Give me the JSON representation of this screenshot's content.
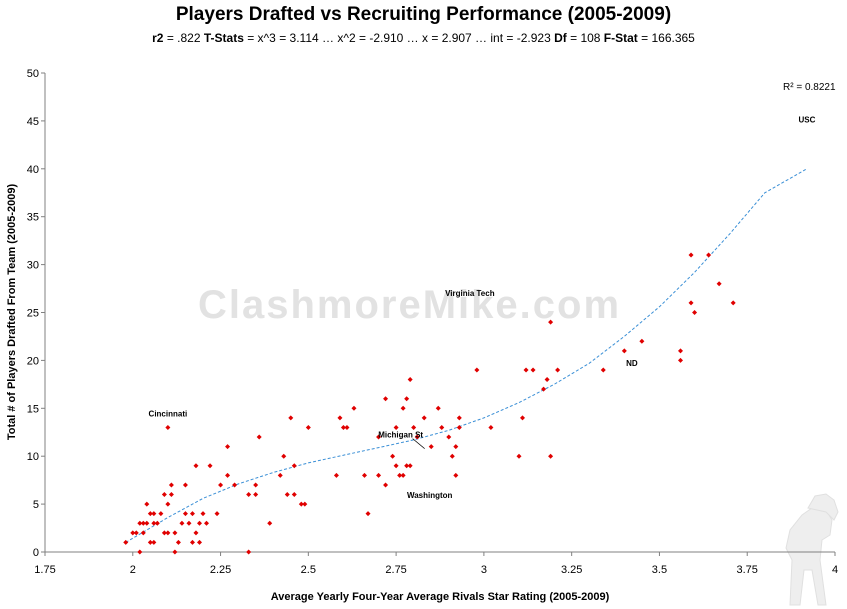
{
  "chart_data": {
    "type": "scatter",
    "title": "Players Drafted vs Recruiting Performance (2005-2009)",
    "subtitle": [
      {
        "label": "r2",
        "value": " = .822   "
      },
      {
        "label": "T-Stats",
        "value": " = x^3 = 3.114 … x^2 = -2.910 … x = 2.907 … int = -2.923   "
      },
      {
        "label": "Df",
        "value": " = 108   "
      },
      {
        "label": "F-Stat",
        "value": " = 166.365"
      }
    ],
    "xlabel": "Average Yearly Four-Year Average Rivals Star Rating (2005-2009)",
    "ylabel": "Total # of Players Drafted From Team (2005-2009)",
    "xlim": [
      1.75,
      4
    ],
    "ylim": [
      0,
      50
    ],
    "x_ticks": [
      "1.75",
      "2",
      "2.25",
      "2.5",
      "2.75",
      "3",
      "3.25",
      "3.5",
      "3.75",
      "4"
    ],
    "y_ticks": [
      "0",
      "5",
      "10",
      "15",
      "20",
      "25",
      "30",
      "35",
      "40",
      "45",
      "50"
    ],
    "grid": false,
    "marker_color": "#e00000",
    "trendline_color": "#3a8fd6",
    "r_squared_label": "R² = 0.8221",
    "watermark": "ClashmoreMike.com",
    "trendline": {
      "type": "polynomial-3",
      "points": [
        [
          1.98,
          1
        ],
        [
          2.1,
          3.6
        ],
        [
          2.2,
          5.6
        ],
        [
          2.3,
          7.1
        ],
        [
          2.4,
          8.3
        ],
        [
          2.5,
          9.3
        ],
        [
          2.6,
          10.1
        ],
        [
          2.7,
          10.9
        ],
        [
          2.8,
          11.7
        ],
        [
          2.9,
          12.7
        ],
        [
          3.0,
          14.0
        ],
        [
          3.1,
          15.6
        ],
        [
          3.2,
          17.5
        ],
        [
          3.3,
          19.7
        ],
        [
          3.4,
          22.5
        ],
        [
          3.5,
          25.6
        ],
        [
          3.6,
          29.2
        ],
        [
          3.7,
          33.2
        ],
        [
          3.8,
          37.5
        ],
        [
          3.92,
          40.0
        ]
      ]
    },
    "annotations": [
      {
        "text": "USC",
        "x": 3.92,
        "y": 44
      },
      {
        "text": "Virginia Tech",
        "x": 2.96,
        "y": 26
      },
      {
        "text": "ND",
        "x": 3.41,
        "y": 19
      },
      {
        "text": "Cincinnati",
        "x": 2.1,
        "y": 13
      },
      {
        "text": "Michigan St",
        "x": 2.78,
        "y": 11
      },
      {
        "text": "Washington",
        "x": 2.84,
        "y": 5
      }
    ],
    "points": [
      [
        1.98,
        1
      ],
      [
        2.0,
        2
      ],
      [
        2.01,
        2
      ],
      [
        2.02,
        3
      ],
      [
        2.02,
        0
      ],
      [
        2.03,
        3
      ],
      [
        2.03,
        2
      ],
      [
        2.04,
        5
      ],
      [
        2.04,
        3
      ],
      [
        2.05,
        1
      ],
      [
        2.05,
        4
      ],
      [
        2.06,
        3
      ],
      [
        2.06,
        4
      ],
      [
        2.06,
        1
      ],
      [
        2.07,
        3
      ],
      [
        2.08,
        4
      ],
      [
        2.09,
        2
      ],
      [
        2.09,
        6
      ],
      [
        2.1,
        13
      ],
      [
        2.1,
        5
      ],
      [
        2.1,
        2
      ],
      [
        2.11,
        7
      ],
      [
        2.11,
        6
      ],
      [
        2.12,
        2
      ],
      [
        2.12,
        0
      ],
      [
        2.13,
        1
      ],
      [
        2.14,
        3
      ],
      [
        2.15,
        4
      ],
      [
        2.15,
        7
      ],
      [
        2.16,
        3
      ],
      [
        2.17,
        4
      ],
      [
        2.17,
        1
      ],
      [
        2.18,
        9
      ],
      [
        2.18,
        2
      ],
      [
        2.19,
        3
      ],
      [
        2.19,
        1
      ],
      [
        2.2,
        4
      ],
      [
        2.21,
        3
      ],
      [
        2.22,
        9
      ],
      [
        2.24,
        4
      ],
      [
        2.25,
        7
      ],
      [
        2.27,
        8
      ],
      [
        2.27,
        11
      ],
      [
        2.29,
        7
      ],
      [
        2.33,
        0
      ],
      [
        2.33,
        6
      ],
      [
        2.35,
        7
      ],
      [
        2.35,
        6
      ],
      [
        2.36,
        12
      ],
      [
        2.39,
        3
      ],
      [
        2.42,
        8
      ],
      [
        2.43,
        10
      ],
      [
        2.44,
        6
      ],
      [
        2.45,
        14
      ],
      [
        2.46,
        6
      ],
      [
        2.46,
        9
      ],
      [
        2.48,
        5
      ],
      [
        2.49,
        5
      ],
      [
        2.5,
        13
      ],
      [
        2.58,
        8
      ],
      [
        2.59,
        14
      ],
      [
        2.6,
        13
      ],
      [
        2.61,
        13
      ],
      [
        2.63,
        15
      ],
      [
        2.66,
        8
      ],
      [
        2.67,
        4
      ],
      [
        2.7,
        12
      ],
      [
        2.7,
        8
      ],
      [
        2.72,
        7
      ],
      [
        2.72,
        16
      ],
      [
        2.74,
        10
      ],
      [
        2.75,
        9
      ],
      [
        2.75,
        13
      ],
      [
        2.76,
        8
      ],
      [
        2.77,
        15
      ],
      [
        2.77,
        8
      ],
      [
        2.78,
        16
      ],
      [
        2.78,
        9
      ],
      [
        2.79,
        18
      ],
      [
        2.79,
        9
      ],
      [
        2.8,
        13
      ],
      [
        2.81,
        12
      ],
      [
        2.83,
        14
      ],
      [
        2.85,
        11
      ],
      [
        2.87,
        15
      ],
      [
        2.88,
        13
      ],
      [
        2.9,
        12
      ],
      [
        2.91,
        10
      ],
      [
        2.92,
        8
      ],
      [
        2.92,
        11
      ],
      [
        2.93,
        13
      ],
      [
        2.93,
        14
      ],
      [
        2.98,
        19
      ],
      [
        3.02,
        13
      ],
      [
        3.1,
        10
      ],
      [
        3.11,
        14
      ],
      [
        3.12,
        19
      ],
      [
        3.14,
        19
      ],
      [
        3.17,
        17
      ],
      [
        3.18,
        18
      ],
      [
        3.19,
        24
      ],
      [
        3.19,
        10
      ],
      [
        3.21,
        19
      ],
      [
        3.34,
        19
      ],
      [
        3.4,
        21
      ],
      [
        3.45,
        22
      ],
      [
        3.56,
        21
      ],
      [
        3.56,
        20
      ],
      [
        3.59,
        26
      ],
      [
        3.59,
        31
      ],
      [
        3.6,
        25
      ],
      [
        3.64,
        31
      ],
      [
        3.67,
        28
      ],
      [
        3.71,
        26
      ]
    ]
  }
}
